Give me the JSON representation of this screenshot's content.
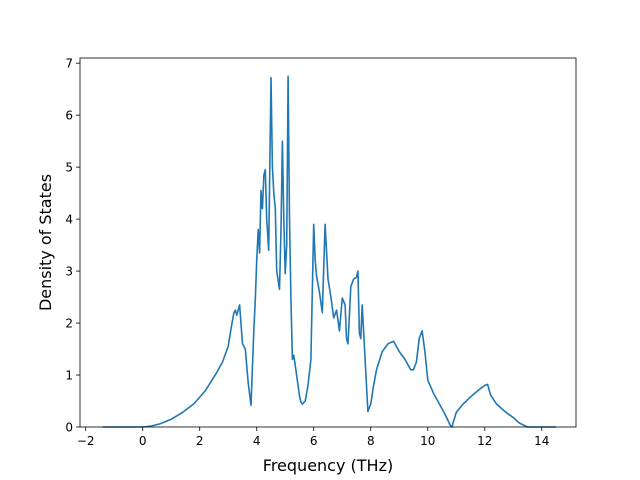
{
  "chart_data": {
    "type": "line",
    "title": "",
    "xlabel": "Frequency (THz)",
    "ylabel": "Density of States",
    "xlim": [
      -2.2,
      15.2
    ],
    "ylim": [
      0,
      7.1
    ],
    "xticks": [
      -2,
      0,
      2,
      4,
      6,
      8,
      10,
      12,
      14
    ],
    "xtick_labels": [
      "−2",
      "0",
      "2",
      "4",
      "6",
      "8",
      "10",
      "12",
      "14"
    ],
    "yticks": [
      0,
      1,
      2,
      3,
      4,
      5,
      6,
      7
    ],
    "ytick_labels": [
      "0",
      "1",
      "2",
      "3",
      "4",
      "5",
      "6",
      "7"
    ],
    "grid": false,
    "series": [
      {
        "color": "#1f77b4",
        "x": [
          -1.4,
          -1.0,
          -0.5,
          0,
          0.3,
          0.6,
          1.0,
          1.4,
          1.8,
          2.2,
          2.6,
          2.8,
          3.0,
          3.1,
          3.2,
          3.25,
          3.3,
          3.4,
          3.5,
          3.6,
          3.7,
          3.8,
          3.9,
          3.95,
          4.0,
          4.05,
          4.1,
          4.15,
          4.2,
          4.25,
          4.3,
          4.35,
          4.42,
          4.5,
          4.55,
          4.6,
          4.65,
          4.7,
          4.8,
          4.85,
          4.9,
          4.95,
          5.0,
          5.05,
          5.1,
          5.15,
          5.2,
          5.25,
          5.3,
          5.4,
          5.5,
          5.55,
          5.6,
          5.7,
          5.8,
          5.9,
          6.0,
          6.05,
          6.1,
          6.2,
          6.3,
          6.4,
          6.5,
          6.6,
          6.7,
          6.8,
          6.9,
          7.0,
          7.1,
          7.15,
          7.2,
          7.3,
          7.4,
          7.5,
          7.55,
          7.6,
          7.65,
          7.7,
          7.8,
          7.9,
          8.0,
          8.1,
          8.2,
          8.4,
          8.6,
          8.8,
          9.0,
          9.2,
          9.4,
          9.5,
          9.6,
          9.7,
          9.8,
          9.9,
          10.0,
          10.2,
          10.4,
          10.6,
          10.8,
          10.85,
          10.9,
          11.0,
          11.2,
          11.5,
          11.8,
          12.0,
          12.1,
          12.2,
          12.4,
          12.7,
          13.0,
          13.2,
          13.5,
          14.0,
          14.5
        ],
        "values": [
          0,
          0,
          0,
          0,
          0.02,
          0.06,
          0.15,
          0.28,
          0.45,
          0.7,
          1.05,
          1.25,
          1.55,
          1.9,
          2.2,
          2.25,
          2.15,
          2.35,
          1.6,
          1.5,
          0.85,
          0.42,
          1.9,
          2.45,
          3.2,
          3.8,
          3.35,
          4.55,
          4.2,
          4.85,
          4.95,
          4.0,
          3.4,
          6.72,
          5.0,
          4.5,
          4.2,
          3.0,
          2.65,
          3.8,
          5.5,
          4.0,
          2.95,
          3.5,
          6.75,
          4.0,
          2.5,
          1.3,
          1.38,
          1.0,
          0.6,
          0.48,
          0.44,
          0.5,
          0.8,
          1.3,
          3.9,
          3.2,
          2.9,
          2.6,
          2.2,
          3.9,
          2.85,
          2.5,
          2.1,
          2.25,
          1.85,
          2.48,
          2.35,
          1.7,
          1.6,
          2.7,
          2.85,
          2.88,
          3.0,
          1.8,
          1.7,
          2.35,
          1.3,
          0.3,
          0.45,
          0.8,
          1.1,
          1.45,
          1.6,
          1.65,
          1.45,
          1.3,
          1.1,
          1.1,
          1.25,
          1.7,
          1.85,
          1.45,
          0.9,
          0.65,
          0.45,
          0.25,
          0.02,
          0.0,
          0.1,
          0.28,
          0.42,
          0.58,
          0.72,
          0.8,
          0.82,
          0.62,
          0.45,
          0.3,
          0.18,
          0.08,
          0.0,
          0,
          0
        ]
      }
    ]
  }
}
